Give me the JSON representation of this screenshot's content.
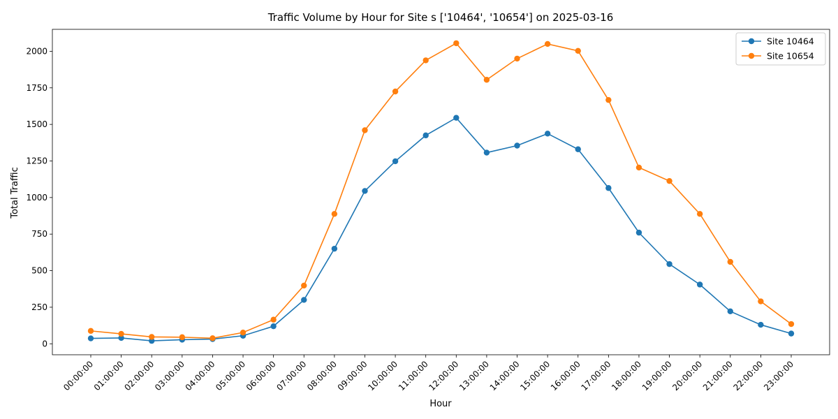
{
  "chart_data": {
    "type": "line",
    "title": "Traffic Volume by Hour for Site s ['10464', '10654'] on 2025-03-16",
    "xlabel": "Hour",
    "ylabel": "Total Traffic",
    "categories": [
      "00:00:00",
      "01:00:00",
      "02:00:00",
      "03:00:00",
      "04:00:00",
      "05:00:00",
      "06:00:00",
      "07:00:00",
      "08:00:00",
      "09:00:00",
      "10:00:00",
      "11:00:00",
      "12:00:00",
      "13:00:00",
      "14:00:00",
      "15:00:00",
      "16:00:00",
      "17:00:00",
      "18:00:00",
      "19:00:00",
      "20:00:00",
      "21:00:00",
      "22:00:00",
      "23:00:00"
    ],
    "ylim": [
      -75,
      2150
    ],
    "yticks": [
      0,
      250,
      500,
      750,
      1000,
      1250,
      1500,
      1750,
      2000
    ],
    "grid": false,
    "legend_position": "top-right",
    "series": [
      {
        "name": "Site 10464",
        "color": "#1f77b4",
        "values": [
          37,
          40,
          20,
          28,
          32,
          55,
          120,
          300,
          650,
          1045,
          1248,
          1425,
          1545,
          1307,
          1355,
          1437,
          1330,
          1065,
          760,
          545,
          405,
          222,
          130,
          70
        ]
      },
      {
        "name": "Site 10654",
        "color": "#ff7f0e",
        "values": [
          88,
          68,
          47,
          45,
          38,
          77,
          165,
          398,
          888,
          1460,
          1725,
          1938,
          2055,
          1805,
          1950,
          2050,
          2003,
          1667,
          1205,
          1113,
          888,
          560,
          290,
          135
        ]
      }
    ]
  }
}
